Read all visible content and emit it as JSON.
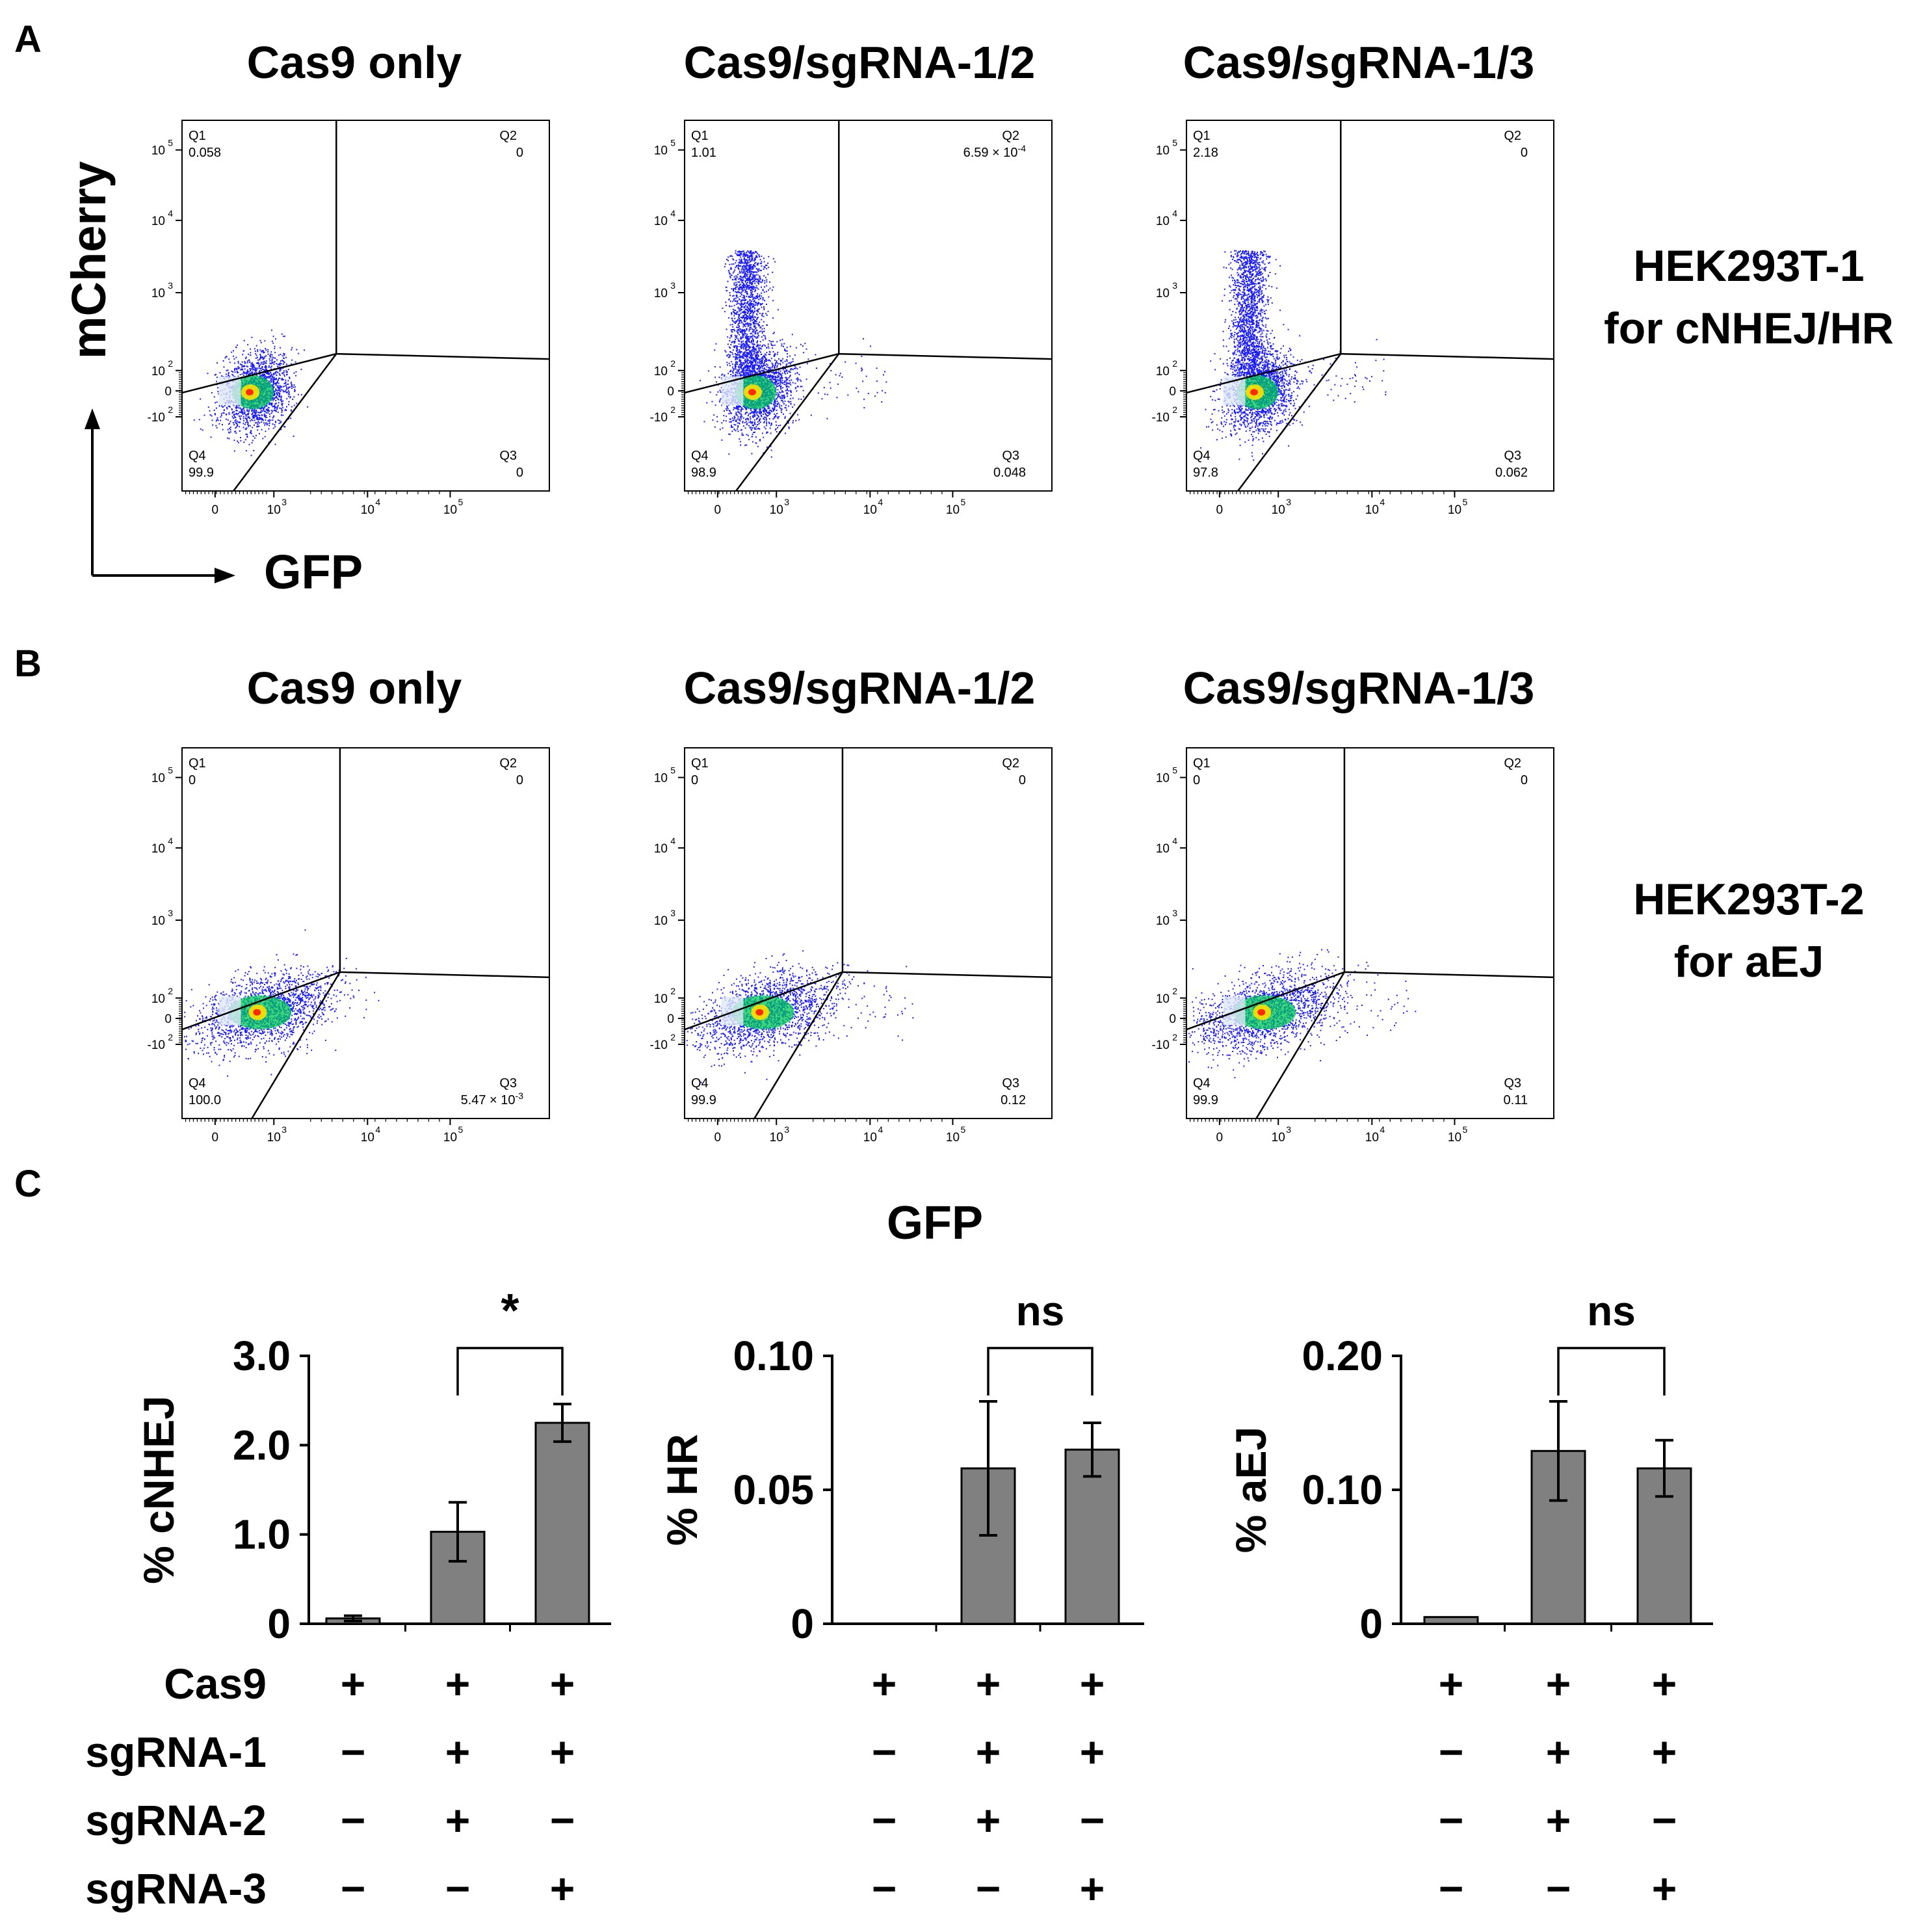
{
  "colors": {
    "bar": "#808080",
    "axis": "#000000",
    "dot": "#1a1aff",
    "hot": "#ff2a00",
    "warm": "#ffe000",
    "core": "#00c853"
  },
  "panel_labels": [
    "A",
    "B",
    "C"
  ],
  "col_titles": [
    "Cas9 only",
    "Cas9/sgRNA-1/2",
    "Cas9/sgRNA-1/3"
  ],
  "row_labels": [
    {
      "line1": "HEK293T-1",
      "line2": "for cNHEJ/HR"
    },
    {
      "line1": "HEK293T-2",
      "line2": "for aEJ"
    }
  ],
  "axis_arrow": {
    "y": "mCherry",
    "x": "GFP"
  },
  "gfp_label": "GFP",
  "flow_ticks": {
    "y": [
      {
        "m": "10",
        "e": "5"
      },
      {
        "m": "10",
        "e": "4"
      },
      {
        "m": "10",
        "e": "3"
      },
      {
        "m": "10",
        "e": "2"
      },
      {
        "m": "0",
        "e": ""
      },
      {
        "m": "-10",
        "e": "2"
      }
    ],
    "x": [
      {
        "m": "0",
        "e": ""
      },
      {
        "m": "10",
        "e": "3"
      },
      {
        "m": "10",
        "e": "4"
      },
      {
        "m": "10",
        "e": "5"
      }
    ]
  },
  "flow_plots": [
    {
      "q1": "0.058",
      "q2": "0",
      "q3": "0",
      "q4": "99.9"
    },
    {
      "q1": "1.01",
      "q2": "6.59 × 10",
      "q2_exp": "-4",
      "q3": "0.048",
      "q4": "98.9"
    },
    {
      "q1": "2.18",
      "q2": "0",
      "q3": "0.062",
      "q4": "97.8"
    },
    {
      "q1": "0",
      "q2": "0",
      "q3": "5.47 × 10",
      "q3_exp": "-3",
      "q4": "100.0"
    },
    {
      "q1": "0",
      "q2": "0",
      "q3": "0.12",
      "q4": "99.9"
    },
    {
      "q1": "0",
      "q2": "0",
      "q3": "0.11",
      "q4": "99.9"
    }
  ],
  "quadrant_names": {
    "q1": "Q1",
    "q2": "Q2",
    "q3": "Q3",
    "q4": "Q4"
  },
  "condition_rows": [
    {
      "label": "Cas9",
      "signs": [
        "+",
        "+",
        "+"
      ]
    },
    {
      "label": "sgRNA-1",
      "signs": [
        "−",
        "+",
        "+"
      ]
    },
    {
      "label": "sgRNA-2",
      "signs": [
        "−",
        "+",
        "−"
      ]
    },
    {
      "label": "sgRNA-3",
      "signs": [
        "−",
        "−",
        "+"
      ]
    }
  ],
  "chart_data": [
    {
      "type": "bar",
      "title": "",
      "xlabel": "",
      "ylabel": "% cNHEJ",
      "ylim": [
        0,
        3.0
      ],
      "yticks": [
        "0",
        "1.0",
        "2.0",
        "3.0"
      ],
      "categories": [
        "Cas9 only",
        "Cas9/sgRNA-1/2",
        "Cas9/sgRNA-1/3"
      ],
      "values": [
        0.06,
        1.03,
        2.25
      ],
      "errors": [
        0.03,
        0.33,
        0.21
      ],
      "significance": {
        "from": 1,
        "to": 2,
        "label": "*"
      }
    },
    {
      "type": "bar",
      "title": "",
      "xlabel": "",
      "ylabel": "% HR",
      "ylim": [
        0,
        0.1
      ],
      "yticks": [
        "0",
        "0.05",
        "0.10"
      ],
      "categories": [
        "Cas9 only",
        "Cas9/sgRNA-1/2",
        "Cas9/sgRNA-1/3"
      ],
      "values": [
        0,
        0.058,
        0.065
      ],
      "errors": [
        0,
        0.025,
        0.01
      ],
      "significance": {
        "from": 1,
        "to": 2,
        "label": "ns"
      }
    },
    {
      "type": "bar",
      "title": "",
      "xlabel": "",
      "ylabel": "% aEJ",
      "ylim": [
        0,
        0.2
      ],
      "yticks": [
        "0",
        "0.10",
        "0.20"
      ],
      "categories": [
        "Cas9 only",
        "Cas9/sgRNA-1/2",
        "Cas9/sgRNA-1/3"
      ],
      "values": [
        0.005,
        0.129,
        0.116
      ],
      "errors": [
        0,
        0.037,
        0.021
      ],
      "significance": {
        "from": 1,
        "to": 2,
        "label": "ns"
      }
    }
  ]
}
